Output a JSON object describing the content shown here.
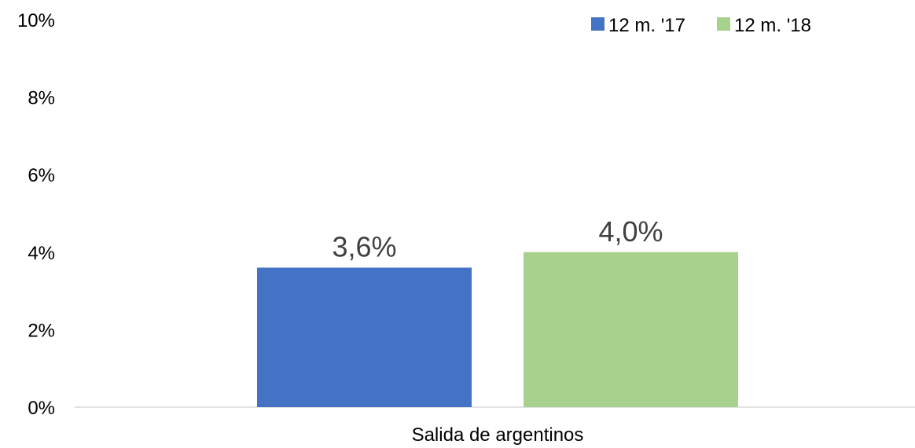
{
  "chart_data": {
    "type": "bar",
    "categories": [
      "Salida de argentinos"
    ],
    "series": [
      {
        "name": "12 m. '17",
        "values": [
          3.6
        ],
        "data_labels": [
          "3,6%"
        ],
        "color": "#4472C4"
      },
      {
        "name": "12 m. '18",
        "values": [
          4.0
        ],
        "data_labels": [
          "4,0%"
        ],
        "color": "#A9D18E"
      }
    ],
    "ylim": [
      0,
      10
    ],
    "y_ticks": [
      0,
      2,
      4,
      6,
      8,
      10
    ],
    "y_tick_labels": [
      "0%",
      "2%",
      "4%",
      "6%",
      "8%",
      "10%"
    ],
    "grid": false,
    "legend_position": "top-right"
  }
}
